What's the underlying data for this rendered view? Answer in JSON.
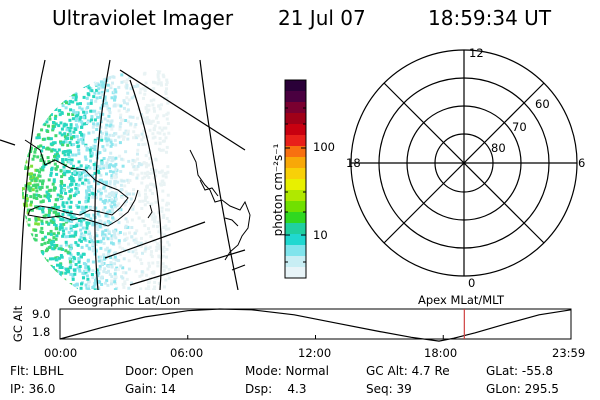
{
  "header": {
    "instrument": "Ultraviolet Imager",
    "date": "21 Jul 07",
    "time": "18:59:34 UT"
  },
  "left_panel": {
    "label": "Geographic Lat/Lon"
  },
  "right_panel": {
    "label": "Apex MLat/MLT",
    "mlt_labels": [
      "12",
      "18",
      "6",
      "0"
    ],
    "mlat_labels": [
      "60",
      "70",
      "80"
    ]
  },
  "colorbar": {
    "unit_label": "photon cm⁻²s⁻¹",
    "tick_labels": [
      "100",
      "10"
    ],
    "colors": [
      "#2a0038",
      "#4a0040",
      "#7a0030",
      "#a00018",
      "#c80010",
      "#e8201a",
      "#f87010",
      "#f8a808",
      "#f8d008",
      "#e8f000",
      "#b0e800",
      "#70e000",
      "#30d820",
      "#20d0a0",
      "#20d8d0",
      "#80e4ec",
      "#c8eef4",
      "#e8f4f8"
    ]
  },
  "chart_data": {
    "type": "line",
    "ylabel": "GC Alt",
    "ylim": [
      1.8,
      9.0
    ],
    "y_tick_labels": [
      "9.0",
      "1.8"
    ],
    "x_tick_labels": [
      "00:00",
      "06:00",
      "12:00",
      "18:00",
      "23:59"
    ],
    "x_hours": [
      0,
      2,
      4,
      6,
      7.5,
      9,
      11,
      13,
      15,
      16.5,
      17.8,
      18.5,
      19.5,
      21,
      22.5,
      24
    ],
    "y_values": [
      1.8,
      4.6,
      7.1,
      8.6,
      9.0,
      8.8,
      7.6,
      5.6,
      3.6,
      2.2,
      1.3,
      2.0,
      3.3,
      5.5,
      7.6,
      8.8
    ],
    "current_time_hours": 18.99
  },
  "status": {
    "filter": "Flt: LBHL",
    "ip": "IP: 36.0",
    "door": "Door: Open",
    "gain": "Gain: 14",
    "mode": "Mode: Normal",
    "dsp": "Dsp:    4.3",
    "gc_alt": "GC Alt: 4.7 Re",
    "seq": "Seq: 39",
    "glat": "GLat: -55.8",
    "glon": "GLon: 295.5"
  }
}
